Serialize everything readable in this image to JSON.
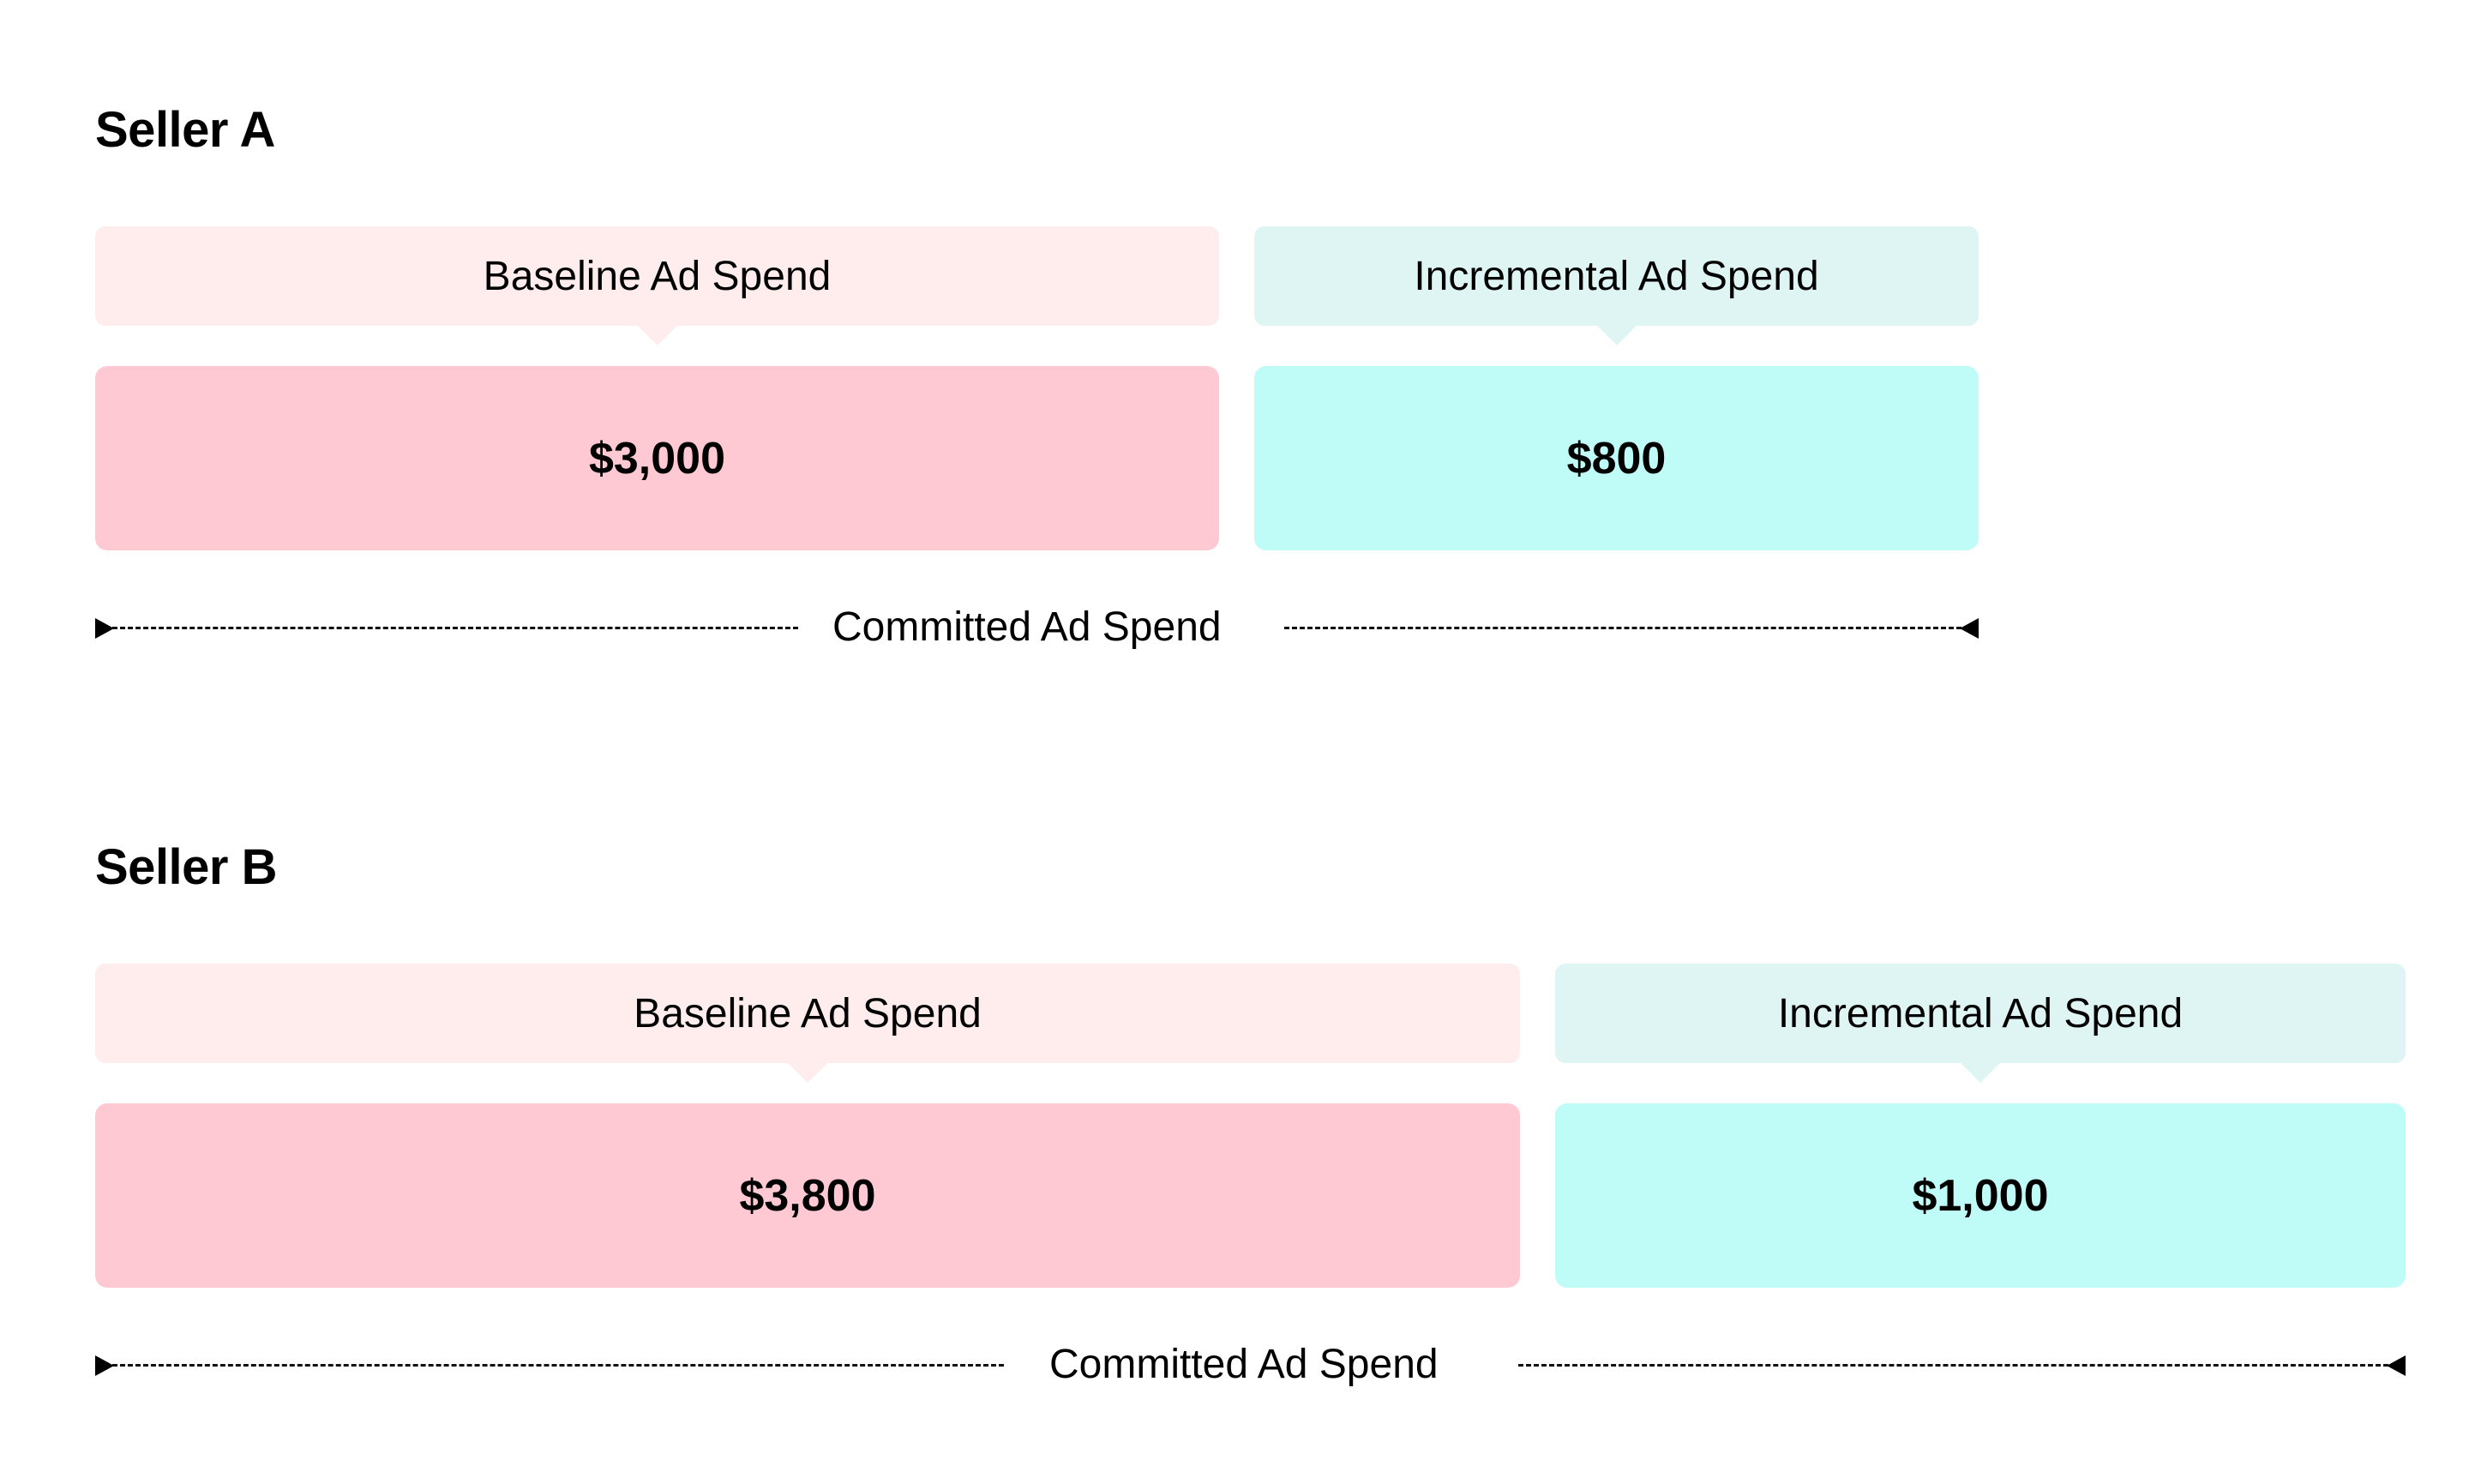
{
  "sellers": [
    {
      "title": "Seller A",
      "baseline_label": "Baseline Ad Spend",
      "incremental_label": "Incremental Ad Spend",
      "baseline_value": "$3,000",
      "incremental_value": "$800",
      "committed_label": "Committed Ad Spend"
    },
    {
      "title": "Seller B",
      "baseline_label": "Baseline Ad Spend",
      "incremental_label": "Incremental Ad Spend",
      "baseline_value": "$3,800",
      "incremental_value": "$1,000",
      "committed_label": "Committed Ad Spend"
    }
  ],
  "colors": {
    "baseline_label_bg": "#ffeded",
    "incremental_label_bg": "#dff5f4",
    "baseline_value_bg": "#ffc9d3",
    "incremental_value_bg": "#bffcf8"
  }
}
